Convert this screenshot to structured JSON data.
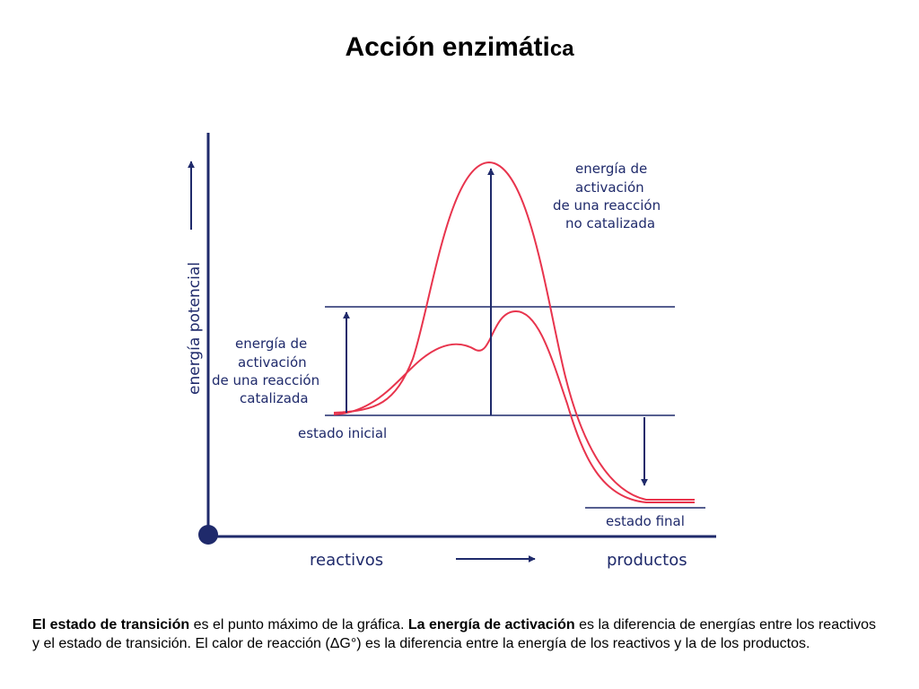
{
  "slide": {
    "title_main": "Acción enzimáti",
    "title_tail": "ca"
  },
  "diagram": {
    "y_axis_label": "energía potencial",
    "x_axis_left_label": "reactivos",
    "x_axis_right_label": "productos",
    "label_uncatalyzed": [
      "energía de",
      "activación",
      "de una reacción",
      "no catalizada"
    ],
    "label_catalyzed": [
      "energía de",
      "activación",
      "de una reacción",
      "catalizada"
    ],
    "label_initial": "estado inicial",
    "label_final": "estado final",
    "colors": {
      "axis": "#1f2a6b",
      "curve": "#e8344d",
      "text": "#1f2a6b"
    }
  },
  "caption": {
    "b1": "El estado de transición",
    "t1": " es el punto máximo de la gráfica. ",
    "b2": "La energía de activación",
    "t2": " es la diferencia de energías entre los reactivos y el estado de transición. El calor de reacción (ΔG°) es la diferencia entre la energía de los reactivos y la de los productos."
  }
}
